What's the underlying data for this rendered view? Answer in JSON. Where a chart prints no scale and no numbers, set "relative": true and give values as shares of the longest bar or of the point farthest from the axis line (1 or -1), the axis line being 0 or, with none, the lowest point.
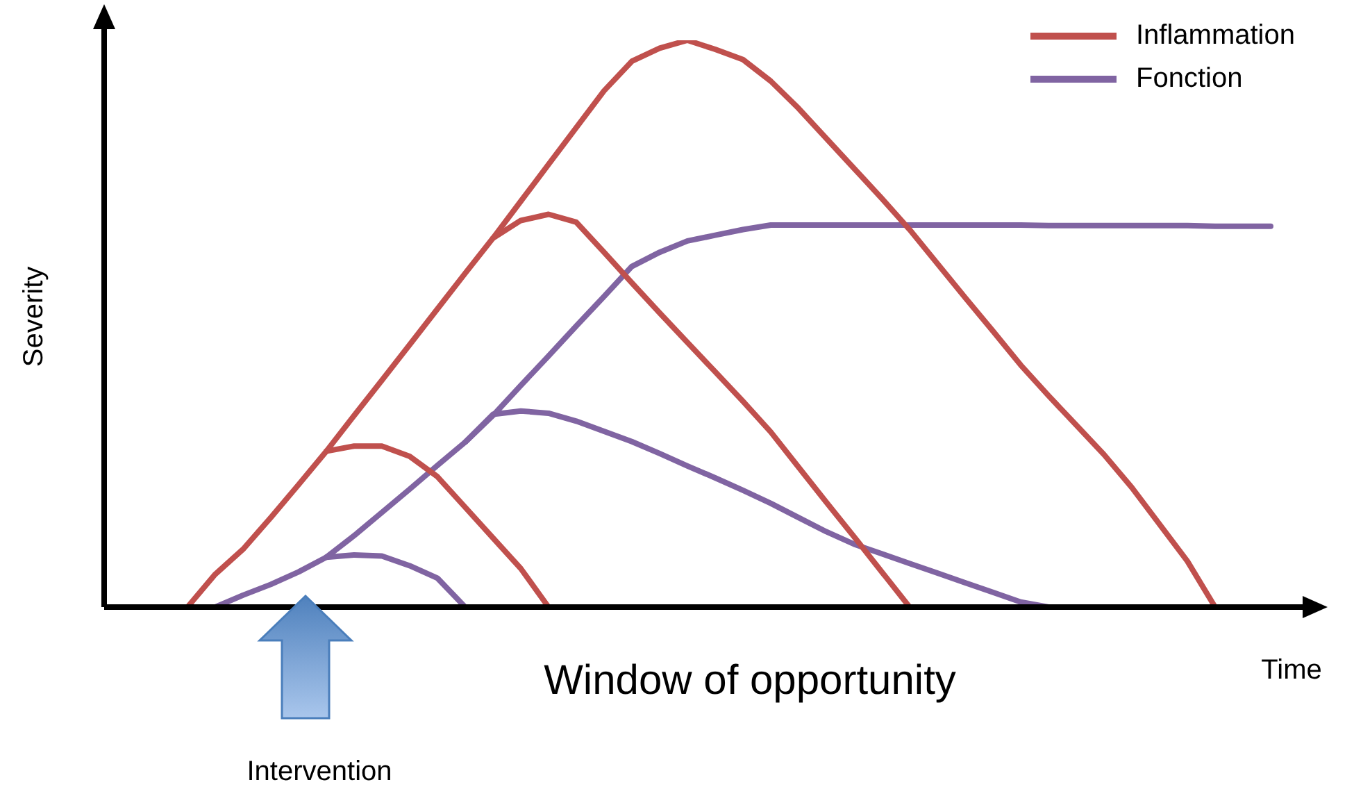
{
  "chart_data": {
    "type": "line",
    "relative": true,
    "xlabel": "Time",
    "ylabel": "Severity",
    "legend": "top right",
    "marker": "none",
    "line_style": "solid",
    "annotations": [
      "Window of opportunity",
      "Intervention"
    ],
    "categories": [
      null,
      null,
      null,
      null,
      null,
      null,
      null,
      null,
      null,
      null,
      null,
      null,
      null,
      null,
      null,
      null,
      null,
      null,
      null,
      null,
      null,
      null,
      null,
      null,
      null,
      null,
      null,
      null,
      null,
      null,
      null,
      null,
      null,
      null,
      null,
      null,
      null,
      null,
      null,
      null,
      null,
      null,
      null,
      null
    ],
    "series": [
      {
        "name": "Inflammation",
        "color": "#c0504d",
        "values": [
          null,
          null,
          null,
          0,
          0.058,
          0.102,
          0.158,
          0.216,
          0.275,
          0.338,
          0.4,
          0.463,
          0.526,
          0.589,
          0.651,
          0.716,
          0.781,
          0.846,
          0.911,
          0.963,
          0.986,
          1,
          0.984,
          0.966,
          0.928,
          0.88,
          0.827,
          0.774,
          0.721,
          0.666,
          0.606,
          0.546,
          0.487,
          0.427,
          0.373,
          0.321,
          0.269,
          0.211,
          0.146,
          0.081,
          0,
          null,
          null,
          null
        ]
      },
      {
        "color": "#c0504d",
        "values": [
          null,
          null,
          null,
          null,
          null,
          null,
          null,
          null,
          null,
          null,
          null,
          null,
          null,
          null,
          0.651,
          0.682,
          0.693,
          0.679,
          0.626,
          0.572,
          0.519,
          0.467,
          0.415,
          0.363,
          0.309,
          0.247,
          0.185,
          0.124,
          0.062,
          0,
          null,
          null,
          null,
          null,
          null,
          null,
          null,
          null,
          null,
          null,
          null,
          null,
          null,
          null
        ]
      },
      {
        "color": "#c0504d",
        "values": [
          null,
          null,
          null,
          null,
          null,
          null,
          null,
          null,
          0.275,
          0.284,
          0.284,
          0.266,
          0.23,
          0.176,
          0.122,
          0.068,
          0,
          null,
          null,
          null,
          null,
          null,
          null,
          null,
          null,
          null,
          null,
          null,
          null,
          null,
          null,
          null,
          null,
          null,
          null,
          null,
          null,
          null,
          null,
          null,
          null,
          null,
          null,
          null
        ]
      },
      {
        "name": "Fonction",
        "color": "#8064a2",
        "values": [
          null,
          null,
          null,
          null,
          0,
          0.021,
          0.04,
          0.062,
          0.088,
          0.126,
          0.167,
          0.208,
          0.25,
          0.291,
          0.338,
          0.391,
          0.443,
          0.496,
          0.548,
          0.601,
          0.626,
          0.646,
          0.656,
          0.666,
          0.674,
          0.674,
          0.674,
          0.674,
          0.674,
          0.674,
          0.674,
          0.674,
          0.674,
          0.674,
          0.673,
          0.673,
          0.673,
          0.673,
          0.673,
          0.673,
          0.672,
          0.672,
          0.672,
          null
        ]
      },
      {
        "color": "#8064a2",
        "values": [
          null,
          null,
          null,
          null,
          null,
          null,
          null,
          null,
          null,
          null,
          null,
          null,
          null,
          0.291,
          0.34,
          0.346,
          0.342,
          0.328,
          0.31,
          0.292,
          0.271,
          0.249,
          0.228,
          0.206,
          0.183,
          0.158,
          0.133,
          0.111,
          0.094,
          0.077,
          0.06,
          0.043,
          0.026,
          0.009,
          0,
          null,
          null,
          null,
          null,
          null,
          null,
          null,
          null,
          null
        ]
      },
      {
        "color": "#8064a2",
        "values": [
          null,
          null,
          null,
          null,
          null,
          null,
          null,
          null,
          0.088,
          0.092,
          0.09,
          0.073,
          0.051,
          0,
          null,
          null,
          null,
          null,
          null,
          null,
          null,
          null,
          null,
          null,
          null,
          null,
          null,
          null,
          null,
          null,
          null,
          null,
          null,
          null,
          null,
          null,
          null,
          null,
          null,
          null,
          null,
          null,
          null,
          null
        ]
      }
    ]
  }
}
